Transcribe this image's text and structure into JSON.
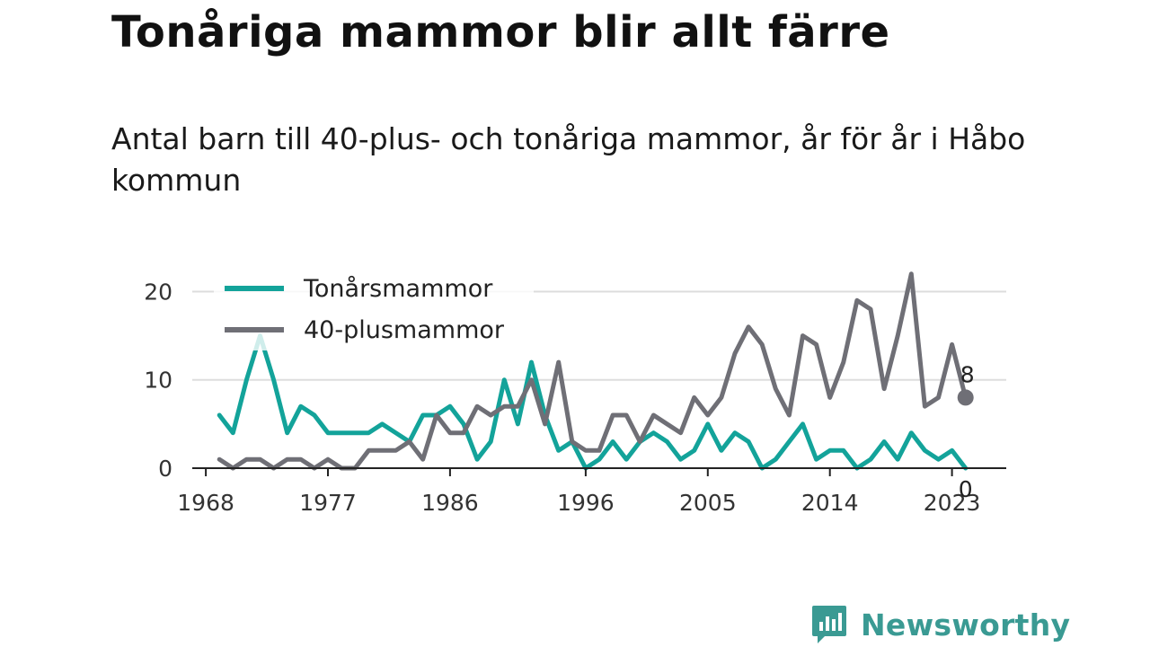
{
  "header": {
    "title": "Tonåriga mammor blir allt färre",
    "subtitle": "Antal barn till 40-plus- och tonåriga mammor, år för år i Håbo kommun"
  },
  "brand": {
    "name": "Newsworthy",
    "color": "#3a9a93"
  },
  "chart_data": {
    "type": "line",
    "title": "",
    "xlabel": "",
    "ylabel": "",
    "x": [
      1969,
      1970,
      1971,
      1972,
      1973,
      1974,
      1975,
      1976,
      1977,
      1978,
      1979,
      1980,
      1981,
      1982,
      1983,
      1984,
      1985,
      1986,
      1987,
      1988,
      1989,
      1990,
      1991,
      1992,
      1993,
      1994,
      1995,
      1996,
      1997,
      1998,
      1999,
      2000,
      2001,
      2002,
      2003,
      2004,
      2005,
      2006,
      2007,
      2008,
      2009,
      2010,
      2011,
      2012,
      2013,
      2014,
      2015,
      2016,
      2017,
      2018,
      2019,
      2020,
      2021,
      2022,
      2023,
      2024
    ],
    "xticks": [
      1968,
      1977,
      1986,
      1996,
      2005,
      2014,
      2023
    ],
    "yticks": [
      0,
      10,
      20
    ],
    "ylim": [
      0,
      23
    ],
    "xlim": [
      1967,
      2027
    ],
    "grid": "horizontal",
    "legend_position": "top-left",
    "series": [
      {
        "name": "Tonårsmammor",
        "color": "#13a39a",
        "values": [
          6,
          4,
          10,
          15,
          10,
          4,
          7,
          6,
          4,
          4,
          4,
          4,
          5,
          4,
          3,
          6,
          6,
          7,
          5,
          1,
          3,
          10,
          5,
          12,
          6,
          2,
          3,
          0,
          1,
          3,
          1,
          3,
          4,
          3,
          1,
          2,
          5,
          2,
          4,
          3,
          0,
          1,
          3,
          5,
          1,
          2,
          2,
          0,
          1,
          3,
          1,
          4,
          2,
          1,
          2,
          0
        ],
        "end_label": "0"
      },
      {
        "name": "40-plusmammor",
        "color": "#6f6f76",
        "values": [
          1,
          0,
          1,
          1,
          0,
          1,
          1,
          0,
          1,
          0,
          0,
          2,
          2,
          2,
          3,
          1,
          6,
          4,
          4,
          7,
          6,
          7,
          7,
          10,
          5,
          12,
          3,
          2,
          2,
          6,
          6,
          3,
          6,
          5,
          4,
          8,
          6,
          8,
          13,
          16,
          14,
          9,
          6,
          15,
          14,
          8,
          12,
          19,
          18,
          9,
          15,
          22,
          7,
          8,
          14,
          8
        ],
        "end_label": "8"
      }
    ]
  }
}
